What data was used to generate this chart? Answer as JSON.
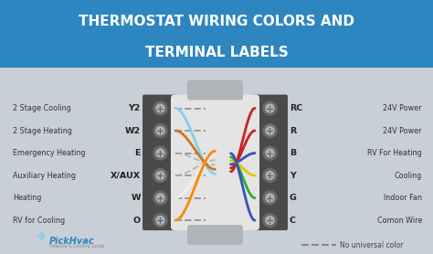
{
  "title_line1": "THERMOSTAT WIRING COLORS AND",
  "title_line2": "TERMINAL LABELS",
  "title_bg_color": "#2e86c0",
  "title_text_color": "#ffffff",
  "body_bg_color": "#c8cfd6",
  "connector_color": "#4a4a4a",
  "screw_outer": "#6a6a6a",
  "screw_inner": "#b0b0b0",
  "center_cable_color": "#e4e4e4",
  "left_terminals": [
    "Y2",
    "W2",
    "E",
    "X/AUX",
    "W",
    "O"
  ],
  "right_terminals": [
    "RC",
    "R",
    "B",
    "Y",
    "G",
    "C"
  ],
  "left_labels": [
    "2 Stage Cooling",
    "2 Stage Heating",
    "Emergency Heating",
    "Auxiliary Heating",
    "Heating",
    "RV for Cooling"
  ],
  "right_labels": [
    "24V Power",
    "24V Power",
    "RV For Heating",
    "Cooling",
    "Indoor Fan",
    "Comon Wire"
  ],
  "left_wire_colors": [
    "#87CEEB",
    "#cc7722",
    "#ffffff",
    "#ffffff",
    "#ff6600",
    "#ff6600"
  ],
  "right_wire_colors": [
    "#cc2222",
    "#cc2222",
    "#3355bb",
    "#ddcc00",
    "#33aa33",
    "#3355bb"
  ],
  "logo_color": "#2e86c0",
  "legend_dash_color": "#888888",
  "legend_text": "No universal color",
  "fig_width": 4.74,
  "fig_height": 2.78,
  "dpi": 100
}
